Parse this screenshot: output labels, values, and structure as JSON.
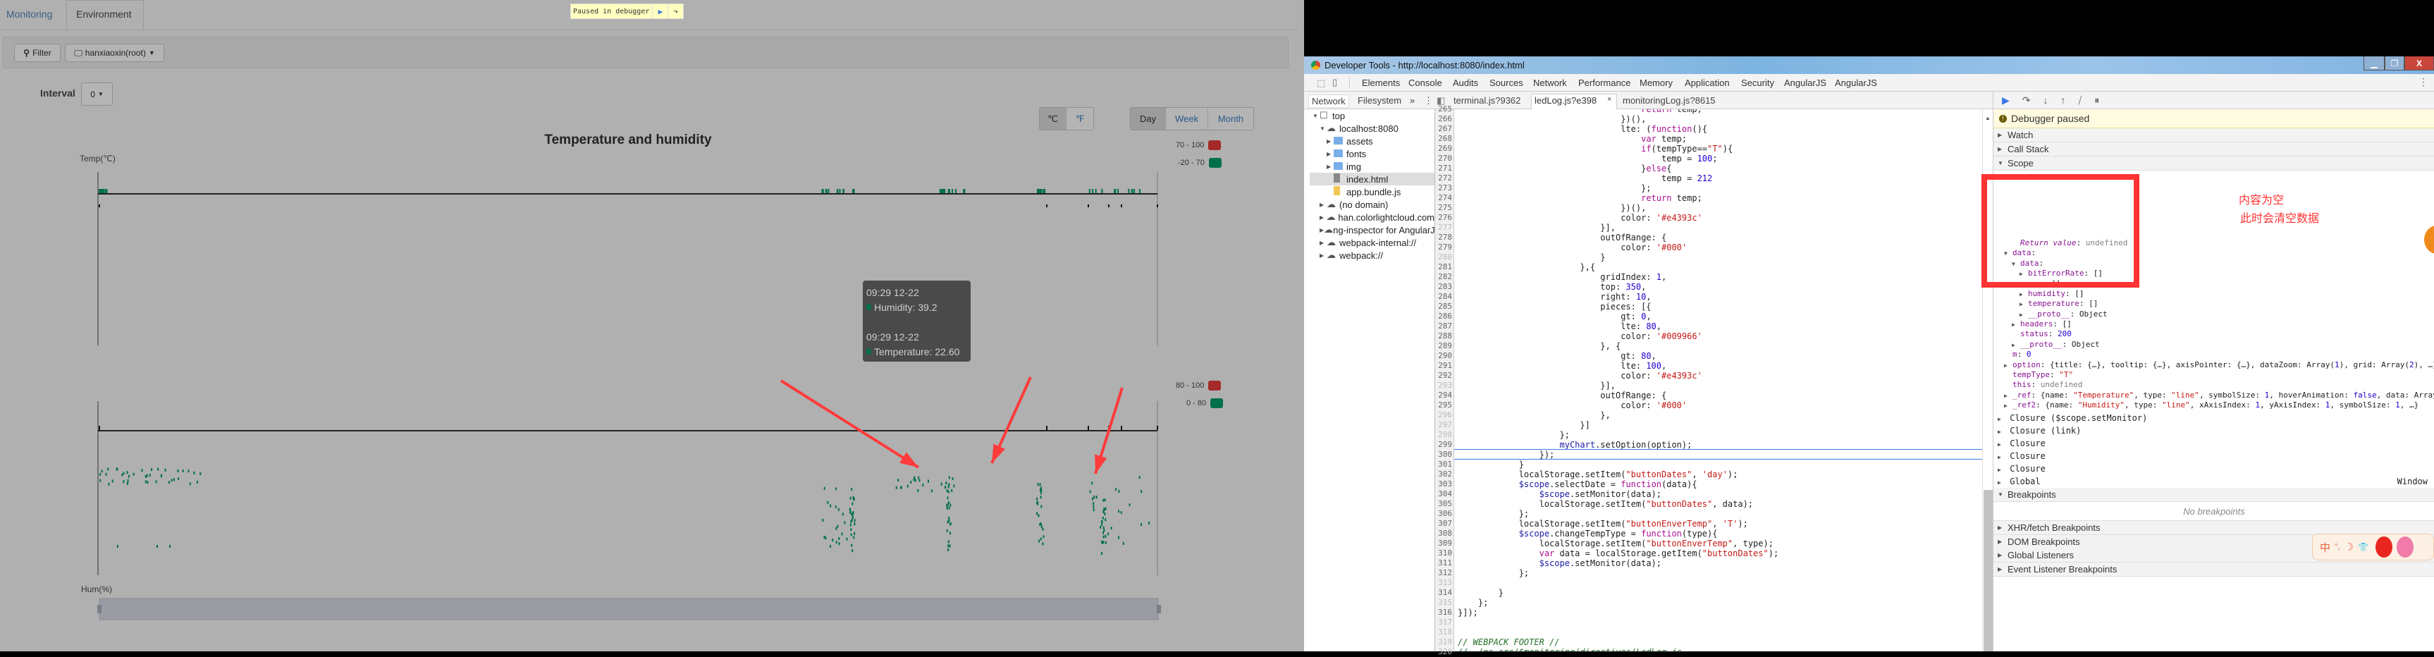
{
  "app": {
    "tabs": [
      {
        "label": "Monitoring"
      },
      {
        "label": "Environment",
        "active": true
      }
    ],
    "paused_banner": {
      "text": "Paused in debugger",
      "resume_icon": "resume-icon",
      "step_icon": "step-over-icon"
    },
    "filter": {
      "label": "Filter",
      "icon": "search-icon"
    },
    "device": {
      "label": "hanxiaoxin(root)",
      "icon": "monitor-icon"
    },
    "interval": {
      "label": "Interval",
      "value": "0"
    },
    "temp_units": [
      {
        "label": "℃",
        "active": true
      },
      {
        "label": "℉"
      }
    ],
    "ranges": [
      {
        "label": "Day",
        "active": true
      },
      {
        "label": "Week"
      },
      {
        "label": "Month"
      }
    ],
    "chart_title": "Temperature and humidity",
    "temp_axis_label": "Temp(℃)",
    "hum_axis_label": "Hum(%)",
    "temp_legend": [
      {
        "label": "70 - 100",
        "color": "#a52a2a"
      },
      {
        "label": "-20 - 70",
        "color": "#00704a"
      }
    ],
    "hum_legend": [
      {
        "label": "80 - 100",
        "color": "#a52a2a"
      },
      {
        "label": "0 - 80",
        "color": "#00704a"
      }
    ],
    "tooltip": {
      "time1": "09:29 12-22",
      "humidity": "Humidity: 39.2",
      "time2": "09:29 12-22",
      "temperature": "Temperature: 22.60",
      "dot_color": "#00704a"
    },
    "datazoom": {
      "start_percent": 0,
      "end_percent": 100
    }
  },
  "devtools": {
    "title": "Developer Tools - http://localhost:8080/index.html",
    "main_tabs": [
      "Elements",
      "Console",
      "Audits",
      "Sources",
      "Network",
      "Performance",
      "Memory",
      "Application",
      "Security",
      "AngularJS",
      "AngularJS"
    ],
    "active_main_tab": "Sources",
    "navigator_tabs": [
      "Network",
      "Filesystem",
      "»"
    ],
    "file_tabs": [
      {
        "label": "terminal.js?9362"
      },
      {
        "label": "ledLog.js?e398",
        "active": true,
        "close": "×"
      },
      {
        "label": "monitoringLog.js?8615"
      }
    ],
    "tree": [
      {
        "label": "top",
        "depth": 0,
        "icon": "frame-icon",
        "expanded": true
      },
      {
        "label": "localhost:8080",
        "depth": 1,
        "icon": "cloud-icon",
        "expanded": true
      },
      {
        "label": "assets",
        "depth": 2,
        "icon": "folder-icon"
      },
      {
        "label": "fonts",
        "depth": 2,
        "icon": "folder-icon"
      },
      {
        "label": "img",
        "depth": 2,
        "icon": "folder-icon"
      },
      {
        "label": "index.html",
        "depth": 2,
        "icon": "file-icon",
        "selected": true
      },
      {
        "label": "app.bundle.js",
        "depth": 2,
        "icon": "js-file-icon"
      },
      {
        "label": "(no domain)",
        "depth": 1,
        "icon": "cloud-icon"
      },
      {
        "label": "han.colorlightcloud.com",
        "depth": 1,
        "icon": "cloud-icon"
      },
      {
        "label": "ng-inspector for AngularJS",
        "depth": 1,
        "icon": "cloud-icon"
      },
      {
        "label": "webpack-internal://",
        "depth": 1,
        "icon": "cloud-icon"
      },
      {
        "label": "webpack://",
        "depth": 1,
        "icon": "cloud-icon"
      }
    ],
    "code": {
      "first_line": 265,
      "current_line": 300,
      "lines": [
        "                                    return temp;",
        "                                })(),",
        "                                lte: (function(){",
        "                                    var temp;",
        "                                    if(tempType==\"T\"){",
        "                                        temp = 100;",
        "                                    }else{",
        "                                        temp = 212",
        "                                    };",
        "                                    return temp;",
        "                                })(),",
        "                                color: '#e4393c'",
        "                            }],",
        "                            outOfRange: {",
        "                                color: '#000'",
        "                            }",
        "                        },{",
        "                            gridIndex: 1,",
        "                            top: 350,",
        "                            right: 10,",
        "                            pieces: [{",
        "                                gt: 0,",
        "                                lte: 80,",
        "                                color: '#009966'",
        "                            }, {",
        "                                gt: 80,",
        "                                lte: 100,",
        "                                color: '#e4393c'",
        "                            }],",
        "                            outOfRange: {",
        "                                color: '#000'",
        "                            },",
        "                        }]",
        "                    };",
        "                    myChart.setOption(option);",
        "                });",
        "            }",
        "            localStorage.setItem(\"buttonDates\", 'day');",
        "            $scope.selectDate = function(data){",
        "                $scope.setMonitor(data);",
        "                localStorage.setItem(\"buttonDates\", data);",
        "            };",
        "            localStorage.setItem(\"buttonEnverTemp\", 'T');",
        "            $scope.changeTempType = function(type){",
        "                localStorage.setItem(\"buttonEnverTemp\", type);",
        "                var data = localStorage.getItem(\"buttonDates\");",
        "                $scope.setMonitor(data);",
        "            };",
        "",
        "        }",
        "    };",
        "}]);",
        "",
        "",
        "// WEBPACK FOOTER //",
        "// ./ns-src/$monitoring/directives/LedLog.js"
      ],
      "dim_lines": [
        277,
        280,
        293,
        296,
        297,
        298,
        313,
        315,
        317,
        318,
        319,
        320
      ]
    },
    "debugger": {
      "toolbar_icons": [
        "resume-icon",
        "step-over-icon",
        "step-into-icon",
        "step-out-icon",
        "deactivate-breakpoints-icon",
        "pause-on-exceptions-icon"
      ],
      "paused_text": "Debugger paused",
      "sections": [
        "Watch",
        "Call Stack",
        "Scope"
      ],
      "scope_local": [
        {
          "depth": 1,
          "key": "Return value",
          "val": "undefined",
          "italic": true
        },
        {
          "depth": 0,
          "key": "data",
          "val": "",
          "toggle": "▼"
        },
        {
          "depth": 1,
          "key": "data",
          "val": "",
          "toggle": "▼"
        },
        {
          "depth": 2,
          "key": "bitErrorRate",
          "val": "[]",
          "toggle": "▶"
        },
        {
          "depth": 2,
          "key": "gps",
          "val": "[]",
          "toggle": "▶"
        },
        {
          "depth": 2,
          "key": "humidity",
          "val": "[]",
          "toggle": "▶"
        },
        {
          "depth": 2,
          "key": "temperature",
          "val": "[]",
          "toggle": "▶"
        },
        {
          "depth": 2,
          "key": "__proto__",
          "val": "Object",
          "toggle": "▶"
        },
        {
          "depth": 1,
          "key": "headers",
          "val": "[]",
          "toggle": "▶"
        },
        {
          "depth": 1,
          "key": "status",
          "val": "200"
        },
        {
          "depth": 1,
          "key": "__proto__",
          "val": "Object",
          "toggle": "▶"
        },
        {
          "depth": 0,
          "key": "m",
          "val": "0"
        },
        {
          "depth": 0,
          "key": "option",
          "val": "{title: {…}, tooltip: {…}, axisPointer: {…}, dataZoom: Array(1), grid: Array(2), …}",
          "toggle": "▶"
        },
        {
          "depth": 0,
          "key": "tempType",
          "val": "\"T\""
        },
        {
          "depth": 0,
          "key": "this",
          "val": "undefined"
        },
        {
          "depth": 0,
          "key": "_ref",
          "val": "{name: \"Temperature\", type: \"line\", symbolSize: 1, hoverAnimation: false, data: Array",
          "toggle": "▶"
        },
        {
          "depth": 0,
          "key": "_ref2",
          "val": "{name: \"Humidity\", type: \"line\", xAxisIndex: 1, yAxisIndex: 1, symbolSize: 1, …}",
          "toggle": "▶"
        }
      ],
      "closures": [
        "Closure ($scope.setMonitor)",
        "Closure (link)",
        "Closure",
        "Closure",
        "Closure",
        "Global"
      ],
      "global_value": "Window",
      "breakpoints_title": "Breakpoints",
      "no_breakpoints": "No breakpoints",
      "more_sections": [
        "XHR/fetch Breakpoints",
        "DOM Breakpoints",
        "Global Listeners",
        "Event Listener Breakpoints"
      ]
    }
  },
  "annotation": {
    "line1": "内容为空",
    "line2": "此时会清空数据",
    "color": "#ff3333"
  },
  "ime_toolbar": {
    "label": "中",
    "icons": [
      "°,",
      "☽",
      "👕"
    ]
  }
}
